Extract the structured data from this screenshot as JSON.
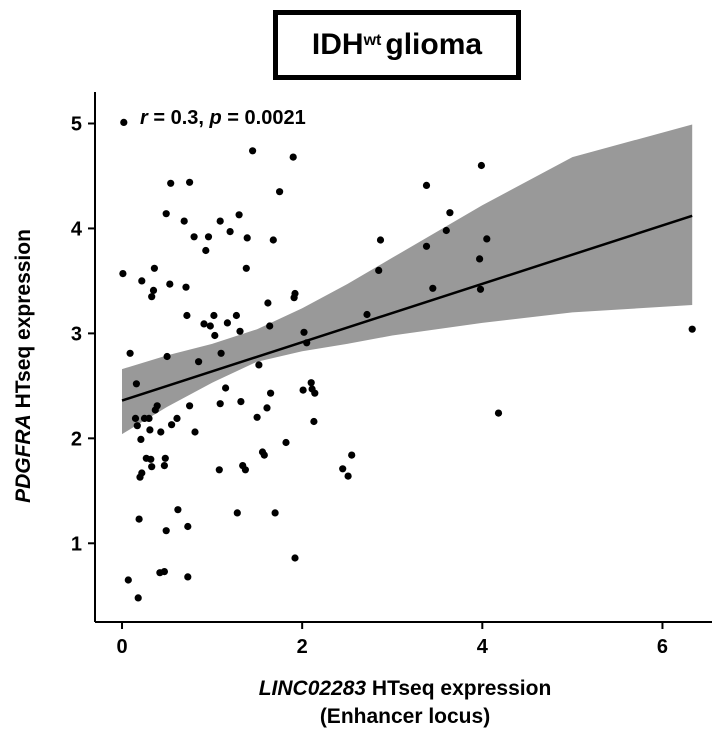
{
  "chart_data": {
    "type": "scatter",
    "title": {
      "main": "IDH",
      "superscript": "wt",
      "suffix": " glioma"
    },
    "xlabel": {
      "italic": "LINC02283",
      "rest": " HTseq expression",
      "line2": "(Enhancer locus)"
    },
    "ylabel": {
      "italic": "PDGFRA",
      "rest": " HTseq expression"
    },
    "annotation": {
      "r_label": "r",
      "r_value": " = 0.3, ",
      "p_label": "p",
      "p_value": " = 0.0021"
    },
    "xlim": [
      -0.3,
      6.55
    ],
    "ylim": [
      0.25,
      5.3
    ],
    "xticks": [
      0,
      2,
      4,
      6
    ],
    "yticks": [
      1,
      2,
      3,
      4,
      5
    ],
    "grid": false,
    "colors": {
      "points": "#000000",
      "ribbon": "#999999",
      "line": "#000000"
    },
    "fit": {
      "x0": 0.0,
      "y0": 2.36,
      "x1": 6.33,
      "y1": 4.12
    },
    "ribbon": [
      {
        "x": 0.0,
        "lo": 2.04,
        "hi": 2.66
      },
      {
        "x": 0.5,
        "lo": 2.3,
        "hi": 2.79
      },
      {
        "x": 1.0,
        "lo": 2.53,
        "hi": 2.9
      },
      {
        "x": 1.5,
        "lo": 2.73,
        "hi": 3.04
      },
      {
        "x": 2.0,
        "lo": 2.83,
        "hi": 3.24
      },
      {
        "x": 2.5,
        "lo": 2.9,
        "hi": 3.47
      },
      {
        "x": 3.0,
        "lo": 2.98,
        "hi": 3.72
      },
      {
        "x": 4.0,
        "lo": 3.1,
        "hi": 4.22
      },
      {
        "x": 5.0,
        "lo": 3.2,
        "hi": 4.68
      },
      {
        "x": 6.33,
        "lo": 3.27,
        "hi": 4.99
      }
    ],
    "points": [
      [
        0.02,
        5.01
      ],
      [
        0.01,
        3.57
      ],
      [
        0.09,
        2.81
      ],
      [
        0.07,
        0.65
      ],
      [
        0.18,
        0.48
      ],
      [
        0.15,
        2.19
      ],
      [
        0.17,
        2.12
      ],
      [
        0.16,
        2.52
      ],
      [
        0.19,
        1.23
      ],
      [
        0.2,
        1.63
      ],
      [
        0.21,
        1.99
      ],
      [
        0.22,
        1.67
      ],
      [
        0.22,
        3.5
      ],
      [
        0.25,
        2.19
      ],
      [
        0.27,
        1.81
      ],
      [
        0.32,
        1.8
      ],
      [
        0.3,
        2.19
      ],
      [
        0.31,
        2.08
      ],
      [
        0.33,
        1.73
      ],
      [
        0.33,
        3.35
      ],
      [
        0.35,
        3.41
      ],
      [
        0.36,
        3.62
      ],
      [
        0.39,
        2.31
      ],
      [
        0.37,
        2.27
      ],
      [
        0.43,
        2.06
      ],
      [
        0.42,
        0.72
      ],
      [
        0.47,
        0.73
      ],
      [
        0.47,
        1.74
      ],
      [
        0.48,
        1.81
      ],
      [
        0.49,
        1.12
      ],
      [
        0.49,
        4.14
      ],
      [
        0.5,
        2.78
      ],
      [
        0.55,
        2.13
      ],
      [
        0.53,
        3.47
      ],
      [
        0.54,
        4.43
      ],
      [
        0.62,
        1.32
      ],
      [
        0.61,
        2.19
      ],
      [
        0.69,
        4.07
      ],
      [
        0.71,
        3.44
      ],
      [
        0.72,
        3.17
      ],
      [
        0.73,
        1.16
      ],
      [
        0.73,
        0.68
      ],
      [
        0.75,
        2.31
      ],
      [
        0.75,
        4.44
      ],
      [
        0.8,
        3.92
      ],
      [
        0.81,
        2.06
      ],
      [
        0.85,
        2.73
      ],
      [
        0.91,
        3.09
      ],
      [
        0.93,
        3.79
      ],
      [
        0.96,
        3.92
      ],
      [
        0.98,
        3.07
      ],
      [
        1.02,
        3.17
      ],
      [
        1.03,
        2.98
      ],
      [
        1.08,
        1.7
      ],
      [
        1.09,
        2.33
      ],
      [
        1.1,
        2.81
      ],
      [
        1.09,
        4.07
      ],
      [
        1.15,
        2.48
      ],
      [
        1.17,
        3.1
      ],
      [
        1.2,
        3.97
      ],
      [
        1.28,
        1.29
      ],
      [
        1.27,
        3.17
      ],
      [
        1.3,
        4.13
      ],
      [
        1.32,
        2.35
      ],
      [
        1.31,
        3.02
      ],
      [
        1.34,
        1.74
      ],
      [
        1.37,
        1.7
      ],
      [
        1.38,
        3.62
      ],
      [
        1.39,
        3.91
      ],
      [
        1.45,
        4.74
      ],
      [
        1.5,
        2.2
      ],
      [
        1.52,
        2.7
      ],
      [
        1.56,
        1.87
      ],
      [
        1.58,
        1.84
      ],
      [
        1.61,
        2.29
      ],
      [
        1.62,
        3.29
      ],
      [
        1.64,
        3.07
      ],
      [
        1.65,
        2.43
      ],
      [
        1.68,
        3.89
      ],
      [
        1.7,
        1.29
      ],
      [
        1.75,
        4.35
      ],
      [
        1.82,
        1.96
      ],
      [
        1.9,
        4.68
      ],
      [
        1.91,
        3.34
      ],
      [
        1.92,
        3.38
      ],
      [
        1.92,
        0.86
      ],
      [
        2.01,
        2.46
      ],
      [
        2.02,
        3.01
      ],
      [
        2.05,
        2.91
      ],
      [
        2.1,
        2.53
      ],
      [
        2.11,
        2.47
      ],
      [
        2.13,
        2.16
      ],
      [
        2.14,
        2.43
      ],
      [
        2.45,
        1.71
      ],
      [
        2.51,
        1.64
      ],
      [
        2.55,
        1.84
      ],
      [
        2.72,
        3.18
      ],
      [
        2.85,
        3.6
      ],
      [
        2.87,
        3.89
      ],
      [
        3.38,
        4.41
      ],
      [
        3.38,
        3.83
      ],
      [
        3.45,
        3.43
      ],
      [
        3.6,
        3.98
      ],
      [
        3.64,
        4.15
      ],
      [
        3.98,
        3.42
      ],
      [
        3.97,
        3.71
      ],
      [
        3.99,
        4.6
      ],
      [
        4.05,
        3.9
      ],
      [
        4.18,
        2.24
      ],
      [
        6.33,
        3.04
      ]
    ]
  }
}
